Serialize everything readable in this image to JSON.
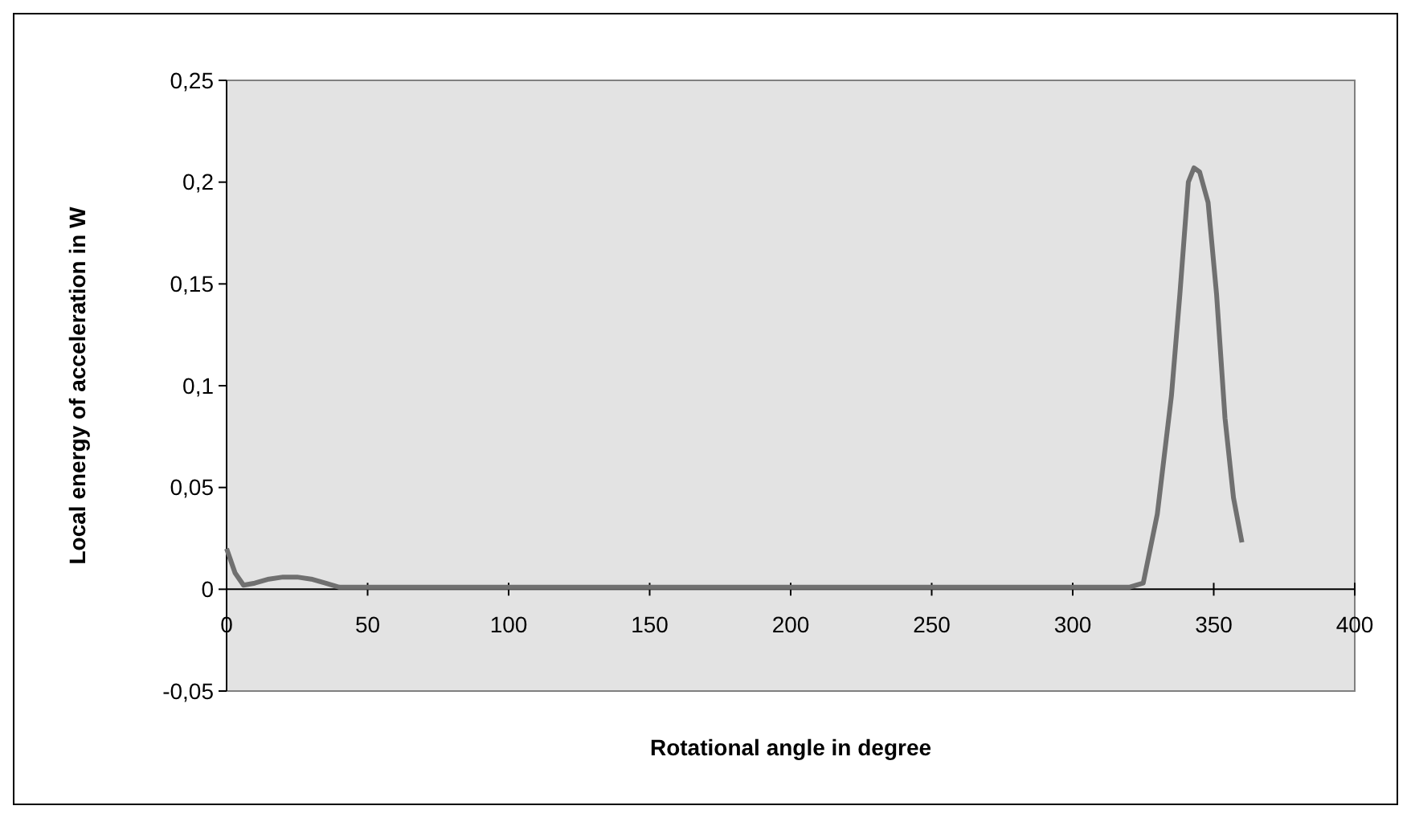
{
  "chart_data": {
    "type": "line",
    "xlabel": "Rotational angle in degree",
    "ylabel": "Local energy of acceleration in W",
    "xlim": [
      0,
      400
    ],
    "xticks": [
      0,
      50,
      100,
      150,
      200,
      250,
      300,
      350,
      400
    ],
    "ylim": [
      -0.05,
      0.25
    ],
    "yticks": [
      {
        "value": -0.05,
        "label": "-0,05"
      },
      {
        "value": 0,
        "label": "0"
      },
      {
        "value": 0.05,
        "label": "0,05"
      },
      {
        "value": 0.1,
        "label": "0,1"
      },
      {
        "value": 0.15,
        "label": "0,15"
      },
      {
        "value": 0.2,
        "label": "0,2"
      },
      {
        "value": 0.25,
        "label": "0,25"
      }
    ],
    "grid": false,
    "marker": "none",
    "line_style": "solid",
    "series": [
      {
        "color": "#707070",
        "x": [
          0,
          3,
          6,
          10,
          15,
          20,
          25,
          30,
          35,
          40,
          50,
          100,
          200,
          300,
          320,
          325,
          330,
          335,
          338,
          341,
          343,
          345,
          348,
          351,
          354,
          357,
          360
        ],
        "values": [
          0.02,
          0.008,
          0.002,
          0.003,
          0.005,
          0.006,
          0.006,
          0.005,
          0.003,
          0.001,
          0.001,
          0.001,
          0.001,
          0.001,
          0.001,
          0.003,
          0.037,
          0.095,
          0.145,
          0.2,
          0.207,
          0.205,
          0.19,
          0.145,
          0.084,
          0.045,
          0.023
        ]
      }
    ]
  }
}
